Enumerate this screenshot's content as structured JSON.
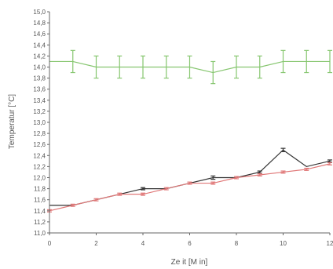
{
  "chart_data": {
    "type": "line",
    "title": "",
    "xlabel": "Ze it [M in]",
    "ylabel": "Temperatur [°C]",
    "xlim": [
      0,
      12
    ],
    "ylim": [
      11.0,
      15.0
    ],
    "x_ticks": [
      0,
      2,
      4,
      6,
      8,
      10,
      12
    ],
    "x_tick_labels": [
      "0",
      "2",
      "4",
      "6",
      "8",
      "10",
      "12"
    ],
    "y_ticks": [
      11.0,
      11.2,
      11.4,
      11.6,
      11.8,
      12.0,
      12.2,
      12.4,
      12.6,
      12.8,
      13.0,
      13.2,
      13.4,
      13.6,
      13.8,
      14.0,
      14.2,
      14.4,
      14.6,
      14.8,
      15.0
    ],
    "y_tick_labels": [
      "11,0",
      "11,2",
      "11,4",
      "11,6",
      "11,8",
      "12,0",
      "12,2",
      "12,4",
      "12,6",
      "12,8",
      "13,0",
      "13,2",
      "13,4",
      "13,6",
      "13,8",
      "14,0",
      "14,2",
      "14,4",
      "14,6",
      "14,8",
      "15,0"
    ],
    "grid": false,
    "series": [
      {
        "color": "#86c66f",
        "x": [
          0,
          1,
          2,
          3,
          4,
          5,
          6,
          7,
          8,
          9,
          10,
          11,
          12
        ],
        "values": [
          14.1,
          14.1,
          14.0,
          14.0,
          14.0,
          14.0,
          14.0,
          13.9,
          14.0,
          14.0,
          14.1,
          14.1,
          14.1
        ],
        "errors": [
          0,
          0.2,
          0.2,
          0.2,
          0.2,
          0.2,
          0.2,
          0.2,
          0.2,
          0.2,
          0.2,
          0.2,
          0.2
        ]
      },
      {
        "color": "#333333",
        "x": [
          0,
          1,
          2,
          3,
          4,
          5,
          6,
          7,
          8,
          9,
          10,
          11,
          12
        ],
        "values": [
          11.5,
          11.5,
          11.6,
          11.7,
          11.8,
          11.8,
          11.9,
          12.0,
          12.0,
          12.1,
          12.5,
          12.2,
          12.3
        ],
        "errors": [
          0,
          0,
          0,
          0,
          0.02,
          0,
          0,
          0.03,
          0,
          0.02,
          0.03,
          0,
          0.02
        ]
      },
      {
        "color": "#e07878",
        "x": [
          0,
          1,
          2,
          3,
          4,
          5,
          6,
          7,
          8,
          9,
          10,
          11,
          12
        ],
        "values": [
          11.4,
          11.5,
          11.6,
          11.7,
          11.7,
          11.8,
          11.9,
          11.9,
          12.0,
          12.05,
          12.1,
          12.15,
          12.25
        ],
        "errors": [
          0.02,
          0.02,
          0.02,
          0.02,
          0.02,
          0.02,
          0.02,
          0.02,
          0.02,
          0.02,
          0.02,
          0.02,
          0.02
        ]
      }
    ]
  }
}
